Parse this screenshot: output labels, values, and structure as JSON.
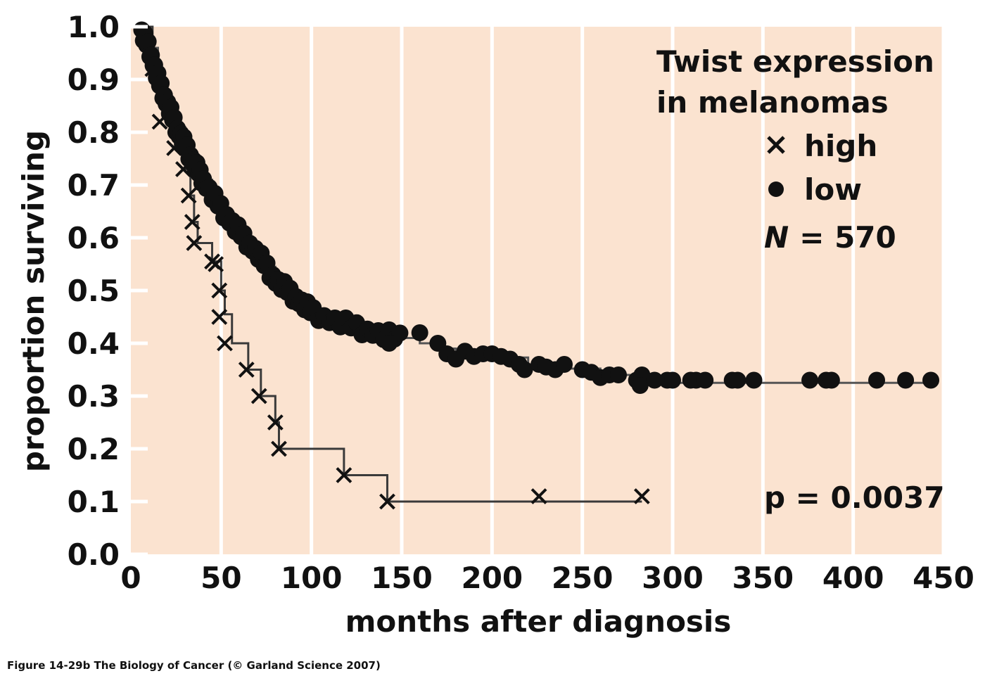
{
  "chart_data": {
    "type": "scatter",
    "subtype": "kaplan-meier survival curve",
    "xlabel": "months after diagnosis",
    "ylabel": "proportion surviving",
    "xlim": [
      0,
      450
    ],
    "ylim": [
      0,
      1
    ],
    "x_ticks": [
      0,
      50,
      100,
      150,
      200,
      250,
      300,
      350,
      400,
      450
    ],
    "y_ticks": [
      0.0,
      0.1,
      0.2,
      0.3,
      0.4,
      0.5,
      0.6,
      0.7,
      0.8,
      0.9,
      1.0
    ],
    "y_tick_labels": [
      "0.0",
      "0.1",
      "0.2",
      "0.3",
      "0.4",
      "0.5",
      "0.6",
      "0.7",
      "0.8",
      "0.9",
      "1.0"
    ],
    "grid": "vertical white gridlines",
    "background_color": "#fbe3d0",
    "legend": {
      "title_lines": [
        "Twist expression",
        "in melanomas"
      ],
      "high_label": "high",
      "low_label": "low",
      "n_prefix": "N",
      "n_suffix": "= 570",
      "placement": "top-right"
    },
    "annotation": "p = 0.0037",
    "series": [
      {
        "name": "high",
        "marker": "x",
        "step": [
          [
            5,
            1.0
          ],
          [
            12,
            0.92
          ],
          [
            16,
            0.85
          ],
          [
            20,
            0.82
          ],
          [
            25,
            0.77
          ],
          [
            30,
            0.73
          ],
          [
            33,
            0.68
          ],
          [
            35,
            0.63
          ],
          [
            37,
            0.59
          ],
          [
            45,
            0.555
          ],
          [
            50,
            0.5
          ],
          [
            52,
            0.455
          ],
          [
            56,
            0.4
          ],
          [
            65,
            0.35
          ],
          [
            72,
            0.3
          ],
          [
            80,
            0.25
          ],
          [
            82,
            0.2
          ],
          [
            118,
            0.15
          ],
          [
            142,
            0.1
          ],
          [
            283,
            0.1
          ]
        ],
        "censored": [
          [
            12,
            0.92
          ],
          [
            16,
            0.82
          ],
          [
            24,
            0.77
          ],
          [
            29,
            0.73
          ],
          [
            32,
            0.68
          ],
          [
            34,
            0.63
          ],
          [
            35,
            0.59
          ],
          [
            45,
            0.555
          ],
          [
            47,
            0.55
          ],
          [
            49,
            0.5
          ],
          [
            49,
            0.45
          ],
          [
            52,
            0.4
          ],
          [
            64,
            0.35
          ],
          [
            71,
            0.3
          ],
          [
            80,
            0.25
          ],
          [
            82,
            0.2
          ],
          [
            118,
            0.15
          ],
          [
            142,
            0.1
          ],
          [
            226,
            0.11
          ],
          [
            283,
            0.11
          ]
        ]
      },
      {
        "name": "low",
        "marker": "dot",
        "curve": [
          [
            5,
            0.995
          ],
          [
            10,
            0.96
          ],
          [
            15,
            0.9
          ],
          [
            20,
            0.855
          ],
          [
            25,
            0.81
          ],
          [
            30,
            0.775
          ],
          [
            35,
            0.74
          ],
          [
            40,
            0.71
          ],
          [
            45,
            0.68
          ],
          [
            50,
            0.655
          ],
          [
            55,
            0.632
          ],
          [
            60,
            0.61
          ],
          [
            65,
            0.59
          ],
          [
            70,
            0.57
          ],
          [
            75,
            0.545
          ],
          [
            80,
            0.52
          ],
          [
            85,
            0.505
          ],
          [
            90,
            0.49
          ],
          [
            95,
            0.475
          ],
          [
            100,
            0.46
          ],
          [
            110,
            0.445
          ],
          [
            120,
            0.435
          ],
          [
            130,
            0.425
          ],
          [
            140,
            0.415
          ],
          [
            150,
            0.41
          ],
          [
            160,
            0.4
          ],
          [
            170,
            0.39
          ],
          [
            180,
            0.383
          ],
          [
            200,
            0.373
          ],
          [
            220,
            0.36
          ],
          [
            240,
            0.352
          ],
          [
            260,
            0.34
          ],
          [
            280,
            0.332
          ],
          [
            290,
            0.325
          ],
          [
            300,
            0.325
          ],
          [
            443,
            0.325
          ]
        ],
        "censored_extra": [
          [
            143,
            0.4
          ],
          [
            160,
            0.42
          ],
          [
            170,
            0.4
          ],
          [
            175,
            0.38
          ],
          [
            180,
            0.37
          ],
          [
            185,
            0.385
          ],
          [
            190,
            0.375
          ],
          [
            195,
            0.38
          ],
          [
            200,
            0.38
          ],
          [
            205,
            0.375
          ],
          [
            210,
            0.37
          ],
          [
            215,
            0.36
          ],
          [
            218,
            0.35
          ],
          [
            226,
            0.36
          ],
          [
            230,
            0.355
          ],
          [
            235,
            0.35
          ],
          [
            240,
            0.36
          ],
          [
            250,
            0.35
          ],
          [
            255,
            0.345
          ],
          [
            260,
            0.335
          ],
          [
            265,
            0.34
          ],
          [
            270,
            0.34
          ],
          [
            280,
            0.33
          ],
          [
            283,
            0.34
          ],
          [
            282,
            0.32
          ],
          [
            290,
            0.33
          ],
          [
            297,
            0.33
          ],
          [
            300,
            0.33
          ],
          [
            310,
            0.33
          ],
          [
            313,
            0.33
          ],
          [
            318,
            0.33
          ],
          [
            333,
            0.33
          ],
          [
            336,
            0.33
          ],
          [
            345,
            0.33
          ],
          [
            376,
            0.33
          ],
          [
            385,
            0.33
          ],
          [
            388,
            0.33
          ],
          [
            413,
            0.33
          ],
          [
            429,
            0.33
          ],
          [
            443,
            0.33
          ]
        ]
      }
    ]
  },
  "caption": "Figure 14-29b  The Biology of Cancer (© Garland Science 2007)"
}
